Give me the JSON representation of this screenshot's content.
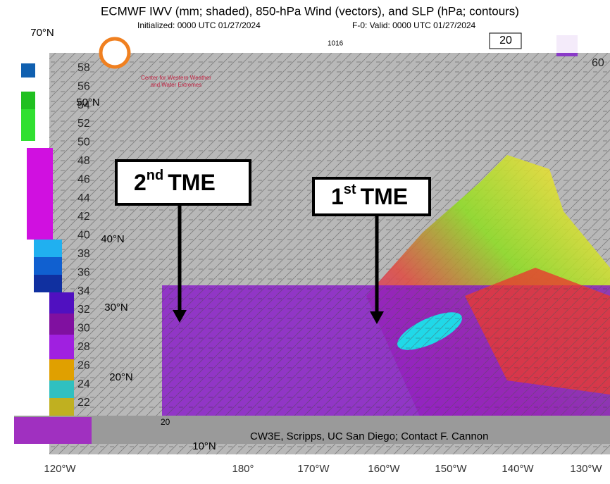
{
  "header": {
    "title": "ECMWF IWV (mm; shaded), 850-hPa Wind (vectors), and SLP (hPa; contours)",
    "initialized": "Initialized: 0000 UTC 01/27/2024",
    "valid": "F-0: Valid: 0000 UTC 01/27/2024",
    "forecast_box": "20"
  },
  "logo": {
    "line1": "Center for Western Weather",
    "line2": "and Water Extremes"
  },
  "contour_label": "1016",
  "corner_label": "60",
  "annotations": [
    {
      "number": "2",
      "suffix": "nd",
      "word": "TME"
    },
    {
      "number": "1",
      "suffix": "st",
      "word": "TME"
    }
  ],
  "latitude_labels": [
    "70°N",
    "50°N",
    "40°N",
    "30°N",
    "20°N",
    "10°N"
  ],
  "longitude_labels": [
    "120°W",
    "180°",
    "170°W",
    "160°W",
    "150°W",
    "140°W",
    "130°W"
  ],
  "colorbar_labels": [
    "58",
    "56",
    "54",
    "52",
    "50",
    "48",
    "46",
    "44",
    "42",
    "40",
    "38",
    "36",
    "34",
    "32",
    "30",
    "28",
    "26",
    "24",
    "22"
  ],
  "colorbar_bottom": "20",
  "credit": "CW3E, Scripps, UC San Diego; Contact F. Cannon"
}
